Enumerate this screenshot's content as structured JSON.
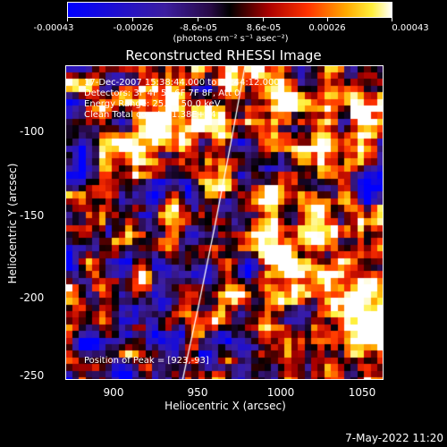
{
  "colorbar": {
    "tick_labels": [
      "-0.00043",
      "-0.00026",
      "-8.6e-05",
      "8.6e-05",
      "0.00026",
      "0.00043"
    ],
    "unit": "(photons cm⁻² s⁻¹ asec⁻²)"
  },
  "plot": {
    "title": "Reconstructed RHESSI Image",
    "time": "17-Dec-2007 15:38:44.000 to 15:44:12.000",
    "detectors": "Detectors: 3F 4F 5F 6F 7F 8F, Att 0",
    "energy": "Energy Range: 25.0 - 50.0 keV",
    "clean": "Clean     Total counts: 1.38E+04",
    "peak": "Position of Peak = [923,-93]",
    "xlabel": "Heliocentric X (arcsec)",
    "ylabel": "Heliocentric Y (arcsec)",
    "xticks": [
      "900",
      "950",
      "1000",
      "1050"
    ],
    "yticks": [
      "-100",
      "-150",
      "-200",
      "-250"
    ]
  },
  "footer": {
    "timestamp": "7-May-2022 11:20"
  }
}
